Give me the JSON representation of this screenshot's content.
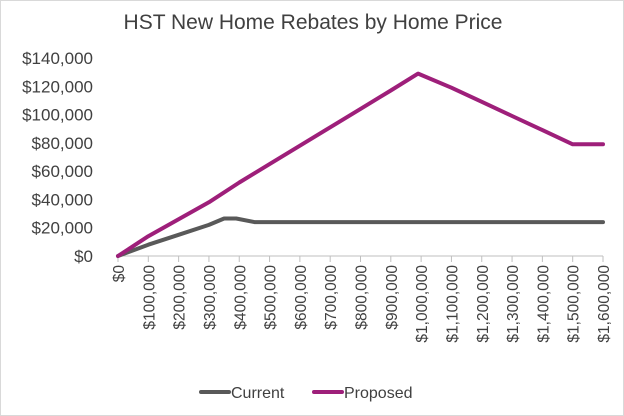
{
  "chart_data": {
    "type": "line",
    "title": "HST New Home Rebates by Home Price",
    "xlabel": "",
    "ylabel": "",
    "x_ticks": [
      "$0",
      "$100,000",
      "$200,000",
      "$300,000",
      "$400,000",
      "$500,000",
      "$600,000",
      "$700,000",
      "$800,000",
      "$900,000",
      "$1,000,000",
      "$1,100,000",
      "$1,200,000",
      "$1,300,000",
      "$1,400,000",
      "$1,500,000",
      "$1,600,000"
    ],
    "y_ticks": [
      "$0",
      "$20,000",
      "$40,000",
      "$60,000",
      "$80,000",
      "$100,000",
      "$120,000",
      "$140,000"
    ],
    "xlim": [
      0,
      1600000
    ],
    "ylim": [
      0,
      140000
    ],
    "grid": false,
    "legend_position": "bottom",
    "series": [
      {
        "name": "Current",
        "color": "#595959",
        "points": [
          [
            0,
            0
          ],
          [
            100000,
            8000
          ],
          [
            200000,
            15000
          ],
          [
            300000,
            22000
          ],
          [
            350000,
            26500
          ],
          [
            390000,
            26500
          ],
          [
            450000,
            24000
          ],
          [
            1600000,
            24000
          ]
        ]
      },
      {
        "name": "Proposed",
        "color": "#9e1f7a",
        "points": [
          [
            0,
            0
          ],
          [
            100000,
            14000
          ],
          [
            200000,
            26000
          ],
          [
            300000,
            38000
          ],
          [
            400000,
            52000
          ],
          [
            500000,
            65000
          ],
          [
            600000,
            78000
          ],
          [
            700000,
            91000
          ],
          [
            800000,
            104000
          ],
          [
            900000,
            117000
          ],
          [
            990000,
            129000
          ],
          [
            1100000,
            119000
          ],
          [
            1200000,
            109000
          ],
          [
            1300000,
            99000
          ],
          [
            1400000,
            89000
          ],
          [
            1500000,
            79000
          ],
          [
            1600000,
            79000
          ]
        ]
      }
    ]
  }
}
